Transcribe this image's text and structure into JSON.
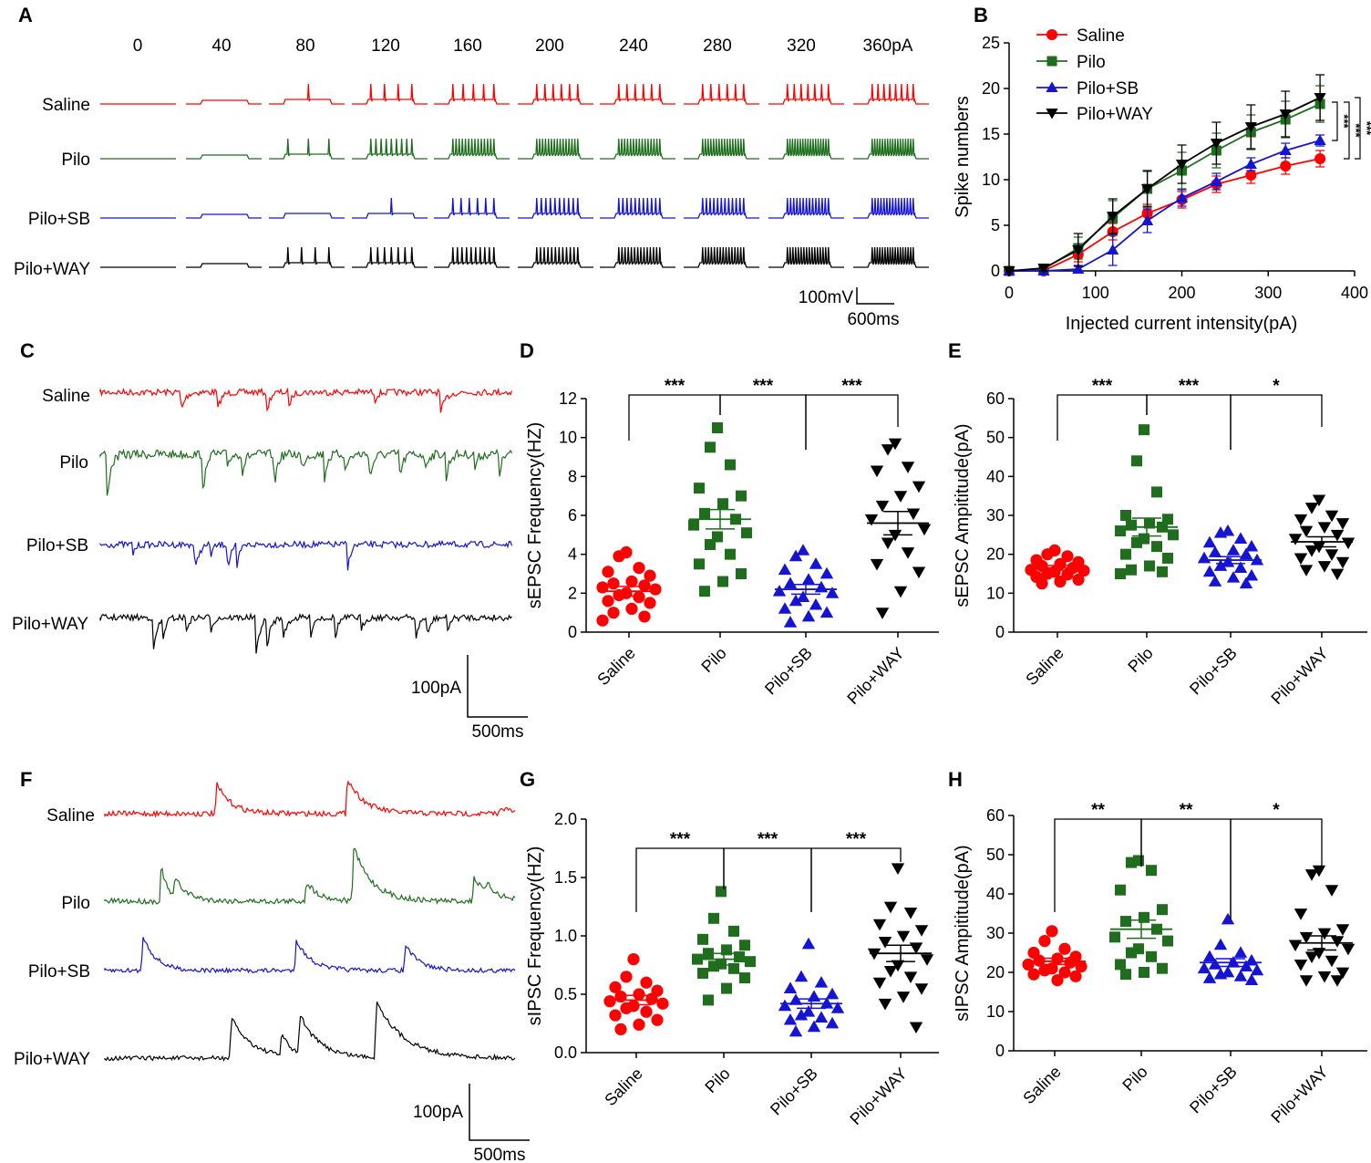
{
  "colors": {
    "saline": "#ff0000",
    "pilo": "#1e6e1e",
    "sb": "#1414d2",
    "way": "#000000"
  },
  "panel_labels": [
    "A",
    "B",
    "C",
    "D",
    "E",
    "F",
    "G",
    "H"
  ],
  "panelA": {
    "currents": [
      "0",
      "40",
      "80",
      "120",
      "160",
      "200",
      "240",
      "280",
      "320",
      "360pA"
    ],
    "rows": [
      "Saline",
      "Pilo",
      "Pilo+SB",
      "Pilo+WAY"
    ],
    "spike_counts": [
      [
        0,
        0,
        1,
        4,
        5,
        6,
        6,
        6,
        7,
        8
      ],
      [
        0,
        0,
        3,
        9,
        14,
        15,
        15,
        16,
        17,
        17
      ],
      [
        0,
        0,
        0,
        1,
        6,
        10,
        11,
        12,
        14,
        15
      ],
      [
        0,
        0,
        4,
        7,
        10,
        12,
        14,
        15,
        16,
        17
      ]
    ],
    "scale_v": "100mV",
    "scale_t": "600ms"
  },
  "panelC": {
    "rows": [
      "Saline",
      "Pilo",
      "Pilo+SB",
      "Pilo+WAY"
    ],
    "scale_i": "100pA",
    "scale_t": "500ms"
  },
  "panelF": {
    "rows": [
      "Saline",
      "Pilo",
      "Pilo+SB",
      "Pilo+WAY"
    ],
    "scale_i": "100pA",
    "scale_t": "500ms"
  },
  "chart_data": [
    {
      "panel": "B",
      "type": "line",
      "title": "",
      "xlabel": "Injected current intensity(pA)",
      "ylabel": "Spike numbers",
      "x": [
        0,
        40,
        80,
        120,
        160,
        200,
        240,
        280,
        320,
        360
      ],
      "xlim": [
        0,
        400
      ],
      "ylim": [
        0,
        25
      ],
      "xticks": [
        0,
        100,
        200,
        300,
        400
      ],
      "yticks": [
        0,
        5,
        10,
        15,
        20,
        25
      ],
      "legend": "top-left",
      "series": [
        {
          "name": "Saline",
          "marker": "circle",
          "color": "#ff0000",
          "values": [
            0,
            0,
            1.8,
            4.3,
            6.3,
            7.8,
            9.5,
            10.5,
            11.5,
            12.3
          ],
          "err": [
            0,
            0.3,
            0.8,
            0.9,
            1.0,
            0.9,
            0.9,
            0.9,
            0.9,
            0.9
          ]
        },
        {
          "name": "Pilo",
          "marker": "square",
          "color": "#1e6e1e",
          "values": [
            0,
            0.2,
            2.5,
            5.8,
            9.0,
            11.0,
            13.2,
            15.2,
            16.6,
            18.3
          ],
          "err": [
            0,
            0.3,
            1.2,
            1.9,
            1.9,
            2.0,
            1.9,
            1.9,
            2.0,
            2.0
          ]
        },
        {
          "name": "Pilo+SB",
          "marker": "triangle-up",
          "color": "#1414d2",
          "values": [
            0,
            0,
            0.2,
            2.3,
            5.5,
            8.0,
            9.8,
            11.7,
            13.2,
            14.3
          ],
          "err": [
            0,
            0,
            0.4,
            1.7,
            1.3,
            0.9,
            0.9,
            0.7,
            0.8,
            0.6
          ]
        },
        {
          "name": "Pilo+WAY",
          "marker": "triangle-down",
          "color": "#000000",
          "values": [
            0,
            0.3,
            2.3,
            6.0,
            9.0,
            11.7,
            14.0,
            15.8,
            17.2,
            19.0
          ],
          "err": [
            0,
            0.3,
            1.8,
            1.9,
            2.0,
            2.1,
            2.3,
            2.4,
            2.5,
            2.5
          ]
        }
      ],
      "significance": [
        "***",
        "***",
        "***"
      ]
    },
    {
      "panel": "D",
      "type": "scatter",
      "ylabel": "sEPSC Frequency(HZ)",
      "ylim": [
        0,
        12
      ],
      "yticks": [
        0,
        2,
        4,
        6,
        8,
        10,
        12
      ],
      "categories": [
        "Saline",
        "Pilo",
        "Pilo+SB",
        "Pilo+WAY"
      ],
      "markers": [
        "circle",
        "square",
        "triangle-up",
        "triangle-down"
      ],
      "points": [
        [
          4.1,
          3.9,
          3.3,
          3.1,
          2.9,
          2.6,
          2.5,
          2.4,
          2.3,
          2.2,
          2.0,
          1.9,
          1.8,
          1.6,
          1.5,
          1.2,
          1.0,
          0.8,
          0.6
        ],
        [
          10.5,
          9.5,
          8.6,
          7.4,
          7.0,
          6.6,
          6.1,
          5.8,
          5.5,
          5.1,
          4.9,
          4.5,
          4.0,
          3.5,
          3.0,
          2.6,
          2.1
        ],
        [
          4.2,
          3.9,
          3.5,
          3.2,
          3.0,
          2.7,
          2.5,
          2.3,
          2.1,
          2.0,
          1.8,
          1.6,
          1.4,
          1.2,
          1.0,
          0.8,
          0.5
        ],
        [
          9.7,
          9.4,
          8.5,
          8.3,
          7.5,
          7.0,
          6.5,
          6.1,
          5.8,
          5.3,
          5.0,
          4.6,
          4.1,
          3.5,
          3.1,
          2.1,
          1.0
        ]
      ],
      "means": [
        2.1,
        5.8,
        2.2,
        5.6
      ],
      "sems": [
        0.25,
        0.5,
        0.25,
        0.6
      ],
      "significance": [
        "***",
        "***",
        "***"
      ]
    },
    {
      "panel": "E",
      "type": "scatter",
      "ylabel": "sEPSC Ampititude(pA)",
      "ylim": [
        0,
        60
      ],
      "yticks": [
        0,
        10,
        20,
        30,
        40,
        50,
        60
      ],
      "categories": [
        "Saline",
        "Pilo",
        "Pilo+SB",
        "Pilo+WAY"
      ],
      "markers": [
        "circle",
        "square",
        "triangle-up",
        "triangle-down"
      ],
      "points": [
        [
          21,
          20,
          19.5,
          18.5,
          18,
          17.5,
          17,
          16.5,
          16,
          15.8,
          15.5,
          15,
          14.8,
          14.2,
          13.5,
          13,
          12.5
        ],
        [
          52,
          44,
          36,
          30,
          29,
          28,
          27.5,
          27,
          26,
          25,
          24,
          23,
          22,
          20,
          19,
          17,
          16,
          15.5,
          15
        ],
        [
          26,
          25.5,
          24,
          23,
          22,
          21,
          20.5,
          20,
          19,
          18.5,
          18,
          17,
          16.5,
          15.5,
          14.5,
          14,
          13,
          12.5
        ],
        [
          34,
          32,
          30,
          29,
          28,
          27,
          26,
          25,
          24,
          23,
          22,
          21,
          20,
          19,
          18,
          17,
          16,
          15
        ]
      ],
      "means": [
        16.5,
        27.0,
        18.5,
        23.2
      ],
      "sems": [
        0.6,
        2.3,
        0.9,
        1.3
      ],
      "significance": [
        "***",
        "***",
        "*"
      ]
    },
    {
      "panel": "G",
      "type": "scatter",
      "ylabel": "sIPSC Frequency(HZ)",
      "ylim": [
        0,
        2.0
      ],
      "yticks": [
        0.0,
        0.5,
        1.0,
        1.5,
        2.0
      ],
      "categories": [
        "Saline",
        "Pilo",
        "Pilo+SB",
        "Pilo+WAY"
      ],
      "markers": [
        "circle",
        "square",
        "triangle-up",
        "triangle-down"
      ],
      "points": [
        [
          0.8,
          0.65,
          0.6,
          0.56,
          0.53,
          0.5,
          0.48,
          0.46,
          0.44,
          0.42,
          0.4,
          0.38,
          0.35,
          0.32,
          0.28,
          0.24,
          0.2
        ],
        [
          1.38,
          1.15,
          1.04,
          0.97,
          0.92,
          0.88,
          0.85,
          0.82,
          0.8,
          0.78,
          0.76,
          0.74,
          0.72,
          0.68,
          0.64,
          0.55,
          0.45
        ],
        [
          0.93,
          0.65,
          0.6,
          0.55,
          0.5,
          0.48,
          0.45,
          0.42,
          0.4,
          0.38,
          0.35,
          0.32,
          0.3,
          0.28,
          0.25,
          0.22,
          0.18
        ],
        [
          1.58,
          1.25,
          1.2,
          1.1,
          1.05,
          1.0,
          0.95,
          0.9,
          0.85,
          0.8,
          0.75,
          0.7,
          0.65,
          0.6,
          0.55,
          0.48,
          0.42,
          0.22
        ]
      ],
      "means": [
        0.45,
        0.8,
        0.42,
        0.85
      ],
      "sems": [
        0.04,
        0.05,
        0.04,
        0.07
      ],
      "significance": [
        "***",
        "***",
        "***"
      ]
    },
    {
      "panel": "H",
      "type": "scatter",
      "ylabel": "sIPSC Ampititude(pA)",
      "ylim": [
        0,
        60
      ],
      "yticks": [
        0,
        10,
        20,
        30,
        40,
        50,
        60
      ],
      "categories": [
        "Saline",
        "Pilo",
        "Pilo+SB",
        "Pilo+WAY"
      ],
      "markers": [
        "circle",
        "square",
        "triangle-up",
        "triangle-down"
      ],
      "points": [
        [
          30.5,
          28,
          26,
          25,
          24,
          23.5,
          23,
          22.5,
          22,
          21.5,
          21,
          20.5,
          20,
          19.5,
          19,
          18
        ],
        [
          48.5,
          48,
          46,
          41,
          36,
          34,
          33,
          31,
          29,
          28,
          26,
          25,
          24,
          22,
          21,
          20,
          19.5
        ],
        [
          33.5,
          27,
          25,
          24,
          23,
          22.5,
          22,
          21.5,
          21,
          20.5,
          20,
          19.5,
          19,
          18.5,
          18
        ],
        [
          46,
          45,
          41,
          35,
          31,
          30,
          29,
          28,
          27,
          26,
          25,
          24,
          23,
          22,
          20,
          19,
          18,
          18
        ]
      ],
      "means": [
        22.8,
        31.0,
        22.5,
        27.5
      ],
      "sems": [
        0.8,
        2.3,
        1.0,
        1.8
      ],
      "significance": [
        "**",
        "**",
        "*"
      ]
    }
  ]
}
